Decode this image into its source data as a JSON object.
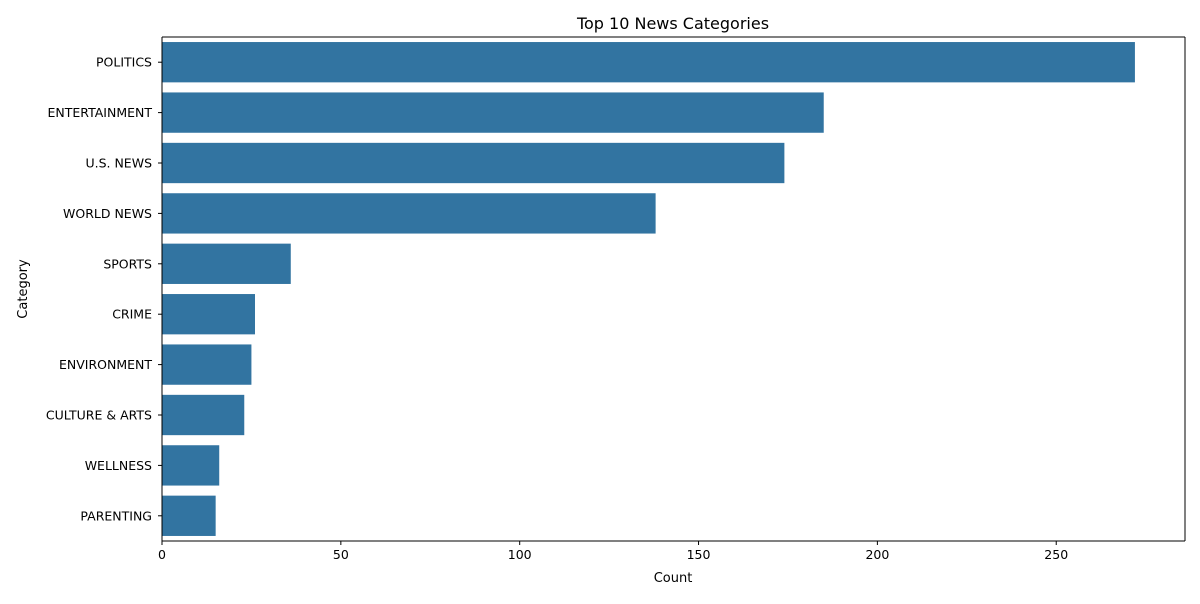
{
  "chart_data": {
    "type": "bar",
    "orientation": "horizontal",
    "title": "Top 10 News Categories",
    "xlabel": "Count",
    "ylabel": "Category",
    "categories": [
      "POLITICS",
      "ENTERTAINMENT",
      "U.S. NEWS",
      "WORLD NEWS",
      "SPORTS",
      "CRIME",
      "ENVIRONMENT",
      "CULTURE & ARTS",
      "WELLNESS",
      "PARENTING"
    ],
    "values": [
      272,
      185,
      174,
      138,
      36,
      26,
      25,
      23,
      16,
      15
    ],
    "xlim": [
      0,
      286
    ],
    "xticks": [
      0,
      50,
      100,
      150,
      200,
      250
    ],
    "grid": false,
    "legend": "none",
    "colors": {
      "bar": "#3274a1",
      "axis": "#000000",
      "background": "#ffffff"
    }
  }
}
